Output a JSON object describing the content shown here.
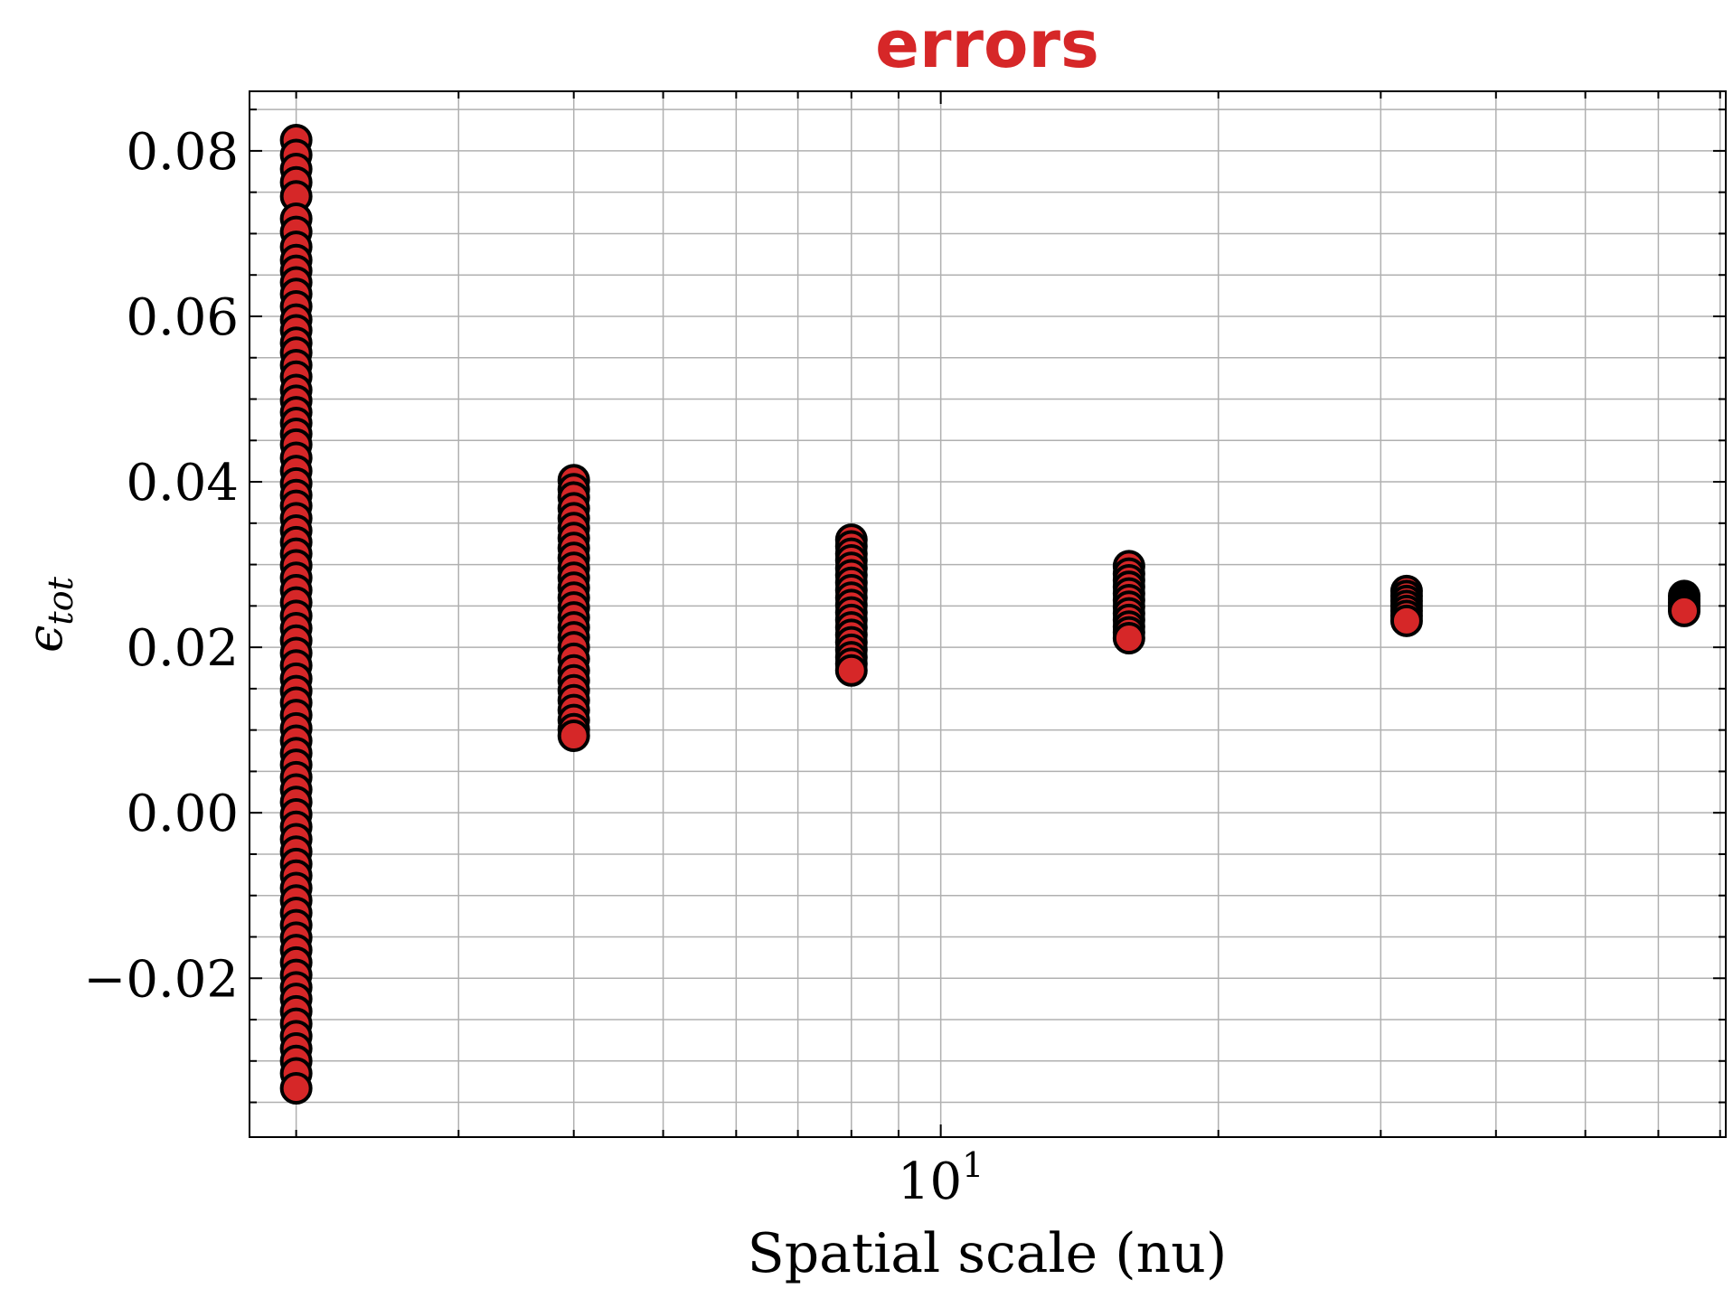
{
  "chart_data": {
    "type": "scatter",
    "title": "errors",
    "xlabel": "Spatial scale (nu)",
    "ylabel": "ϵ",
    "ylabel_sub": "tot",
    "xscale": "log",
    "xlim": [
      1.78,
      71
    ],
    "ylim": [
      -0.0392,
      0.0872
    ],
    "grid": true,
    "x_major_ticks": [
      {
        "value": 10,
        "base": "10",
        "exp": "1"
      }
    ],
    "y_ticks": [
      {
        "value": -0.02,
        "label": "−0.02"
      },
      {
        "value": 0.0,
        "label": "0.00"
      },
      {
        "value": 0.02,
        "label": "0.02"
      },
      {
        "value": 0.04,
        "label": "0.04"
      },
      {
        "value": 0.06,
        "label": "0.06"
      },
      {
        "value": 0.08,
        "label": "0.08"
      }
    ],
    "marker_color": "#d62728",
    "marker_edge_color": "#000000",
    "title_color": "#d62728",
    "series": [
      {
        "x": 2,
        "y": [
          0.0813,
          0.0795,
          0.0778,
          0.0762,
          0.0745,
          0.0718,
          0.0702,
          0.0684,
          0.0668,
          0.0655,
          0.0641,
          0.0627,
          0.0612,
          0.0596,
          0.0583,
          0.0568,
          0.0556,
          0.0541,
          0.0527,
          0.0511,
          0.0498,
          0.0484,
          0.0471,
          0.0458,
          0.0445,
          0.0429,
          0.0413,
          0.0398,
          0.0384,
          0.0371,
          0.0356,
          0.0341,
          0.0327,
          0.0313,
          0.0299,
          0.0284,
          0.0269,
          0.0254,
          0.0238,
          0.0223,
          0.0208,
          0.0193,
          0.0178,
          0.0162,
          0.0147,
          0.0133,
          0.0118,
          0.0102,
          0.0087,
          0.0072,
          0.0058,
          0.0043,
          0.0028,
          0.0013,
          -0.0002,
          -0.0017,
          -0.0032,
          -0.0047,
          -0.0062,
          -0.0076,
          -0.0091,
          -0.0106,
          -0.0121,
          -0.0136,
          -0.0151,
          -0.0166,
          -0.0181,
          -0.0196,
          -0.0211,
          -0.0225,
          -0.024,
          -0.0255,
          -0.027,
          -0.0285,
          -0.03,
          -0.0315,
          -0.0333
        ]
      },
      {
        "x": 4,
        "y": [
          0.0402,
          0.0391,
          0.0381,
          0.0368,
          0.0356,
          0.0344,
          0.0332,
          0.032,
          0.0308,
          0.0296,
          0.0284,
          0.0272,
          0.026,
          0.0248,
          0.0236,
          0.0224,
          0.0212,
          0.02,
          0.0186,
          0.0172,
          0.016,
          0.0148,
          0.0136,
          0.0124,
          0.0112,
          0.0101,
          0.0093
        ]
      },
      {
        "x": 8,
        "y": [
          0.033,
          0.0322,
          0.0313,
          0.0305,
          0.0296,
          0.0287,
          0.0278,
          0.0269,
          0.026,
          0.0251,
          0.0242,
          0.0233,
          0.0224,
          0.0215,
          0.0206,
          0.0197,
          0.0188,
          0.018,
          0.0172
        ]
      },
      {
        "x": 16,
        "y": [
          0.0298,
          0.0289,
          0.0281,
          0.0273,
          0.0265,
          0.0257,
          0.0249,
          0.0241,
          0.0233,
          0.0225,
          0.0218,
          0.0211
        ]
      },
      {
        "x": 32,
        "y": [
          0.0268,
          0.0262,
          0.0256,
          0.025,
          0.0244,
          0.0238,
          0.0232
        ]
      },
      {
        "x": 64,
        "y": [
          0.0262,
          0.0258,
          0.0254,
          0.025,
          0.0246,
          0.0244
        ]
      }
    ]
  }
}
